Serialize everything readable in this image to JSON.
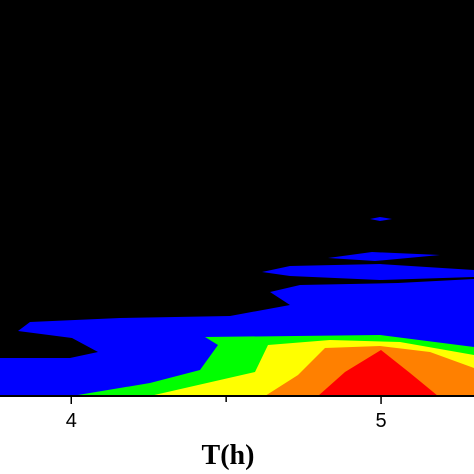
{
  "chart_data": {
    "type": "heatmap",
    "subtype": "filled-contour",
    "title": "",
    "xlabel": "T(h)",
    "ylabel": "",
    "x_ticks": [
      4,
      5
    ],
    "x_tick_labels": [
      "4",
      "5"
    ],
    "xlim": [
      3.77,
      5.3
    ],
    "background_color": "#000000",
    "grid": false,
    "legend": "none",
    "levels": [
      {
        "name": "level-1",
        "color": "#0000ff"
      },
      {
        "name": "level-2",
        "color": "#00ff00"
      },
      {
        "name": "level-3",
        "color": "#ffff00"
      },
      {
        "name": "level-4",
        "color": "#ff8000"
      },
      {
        "name": "level-5",
        "color": "#ff0000"
      }
    ]
  }
}
